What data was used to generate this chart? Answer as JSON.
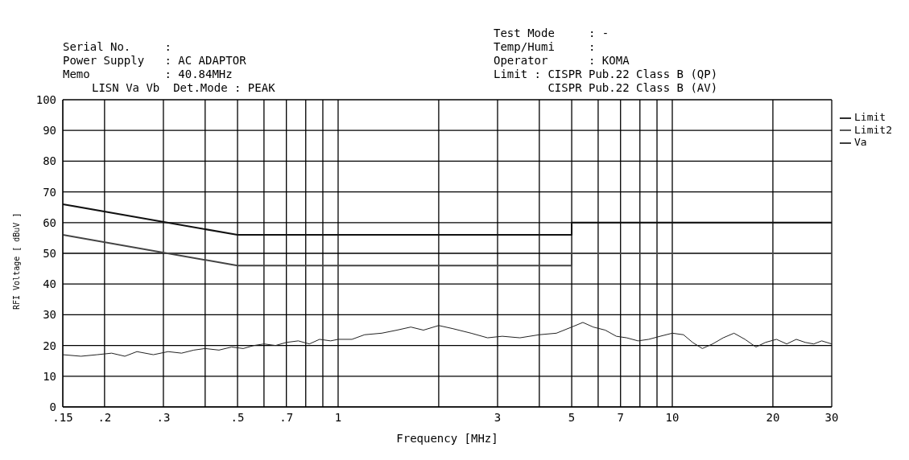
{
  "chart_data": {
    "type": "line",
    "xlabel": "Frequency [MHz]",
    "ylabel": "RFI Voltage [ dBuV ]",
    "log": "x",
    "xlim": [
      0.15,
      30
    ],
    "xticks": [
      {
        "value": 0.15,
        "label": ".15"
      },
      {
        "value": 0.2,
        "label": ".2"
      },
      {
        "value": 0.3,
        "label": ".3"
      },
      {
        "value": 0.4,
        "label": null
      },
      {
        "value": 0.5,
        "label": ".5"
      },
      {
        "value": 0.6,
        "label": null
      },
      {
        "value": 0.7,
        "label": ".7"
      },
      {
        "value": 0.8,
        "label": null
      },
      {
        "value": 0.9,
        "label": null
      },
      1,
      {
        "value": 2,
        "label": null
      },
      3,
      {
        "value": 4,
        "label": null
      },
      5,
      {
        "value": 6,
        "label": null
      },
      7,
      {
        "value": 8,
        "label": null
      },
      {
        "value": 9,
        "label": null
      },
      10,
      20,
      30
    ],
    "ylim": [
      0,
      100
    ],
    "yticks": [
      0,
      10,
      20,
      30,
      40,
      50,
      60,
      70,
      80,
      90,
      100
    ],
    "grid": true,
    "legend": "right",
    "line_style": "solid",
    "annotations": [
      "Serial No.     :",
      "Power Supply   : AC ADAPTOR",
      "Memo           : 40.84MHz",
      "LISN Va Vb  Det.Mode : PEAK",
      "Test Mode     : -",
      "Temp/Humi     :",
      "Operator      : KOMA",
      "Limit : CISPR Pub.22 Class B (QP)",
      "        CISPR Pub.22 Class B (AV)"
    ],
    "series": [
      {
        "name": "Limit",
        "color": "#111111",
        "x": [
          0.15,
          0.5,
          5,
          5,
          30
        ],
        "values": [
          66,
          56,
          56,
          60,
          60
        ]
      },
      {
        "name": "Limit2",
        "color": "#444444",
        "x": [
          0.15,
          0.5,
          5,
          5,
          30
        ],
        "values": [
          56,
          46,
          46,
          50,
          50
        ]
      },
      {
        "name": "Va",
        "color": "#222222",
        "x": [
          0.15,
          0.17,
          0.19,
          0.21,
          0.23,
          0.25,
          0.28,
          0.31,
          0.34,
          0.37,
          0.4,
          0.44,
          0.48,
          0.52,
          0.56,
          0.6,
          0.65,
          0.7,
          0.76,
          0.82,
          0.88,
          0.95,
          1.0,
          1.1,
          1.2,
          1.35,
          1.5,
          1.65,
          1.8,
          2.0,
          2.2,
          2.5,
          2.8,
          3.1,
          3.5,
          4.0,
          4.5,
          5.0,
          5.4,
          5.8,
          6.3,
          6.8,
          7.3,
          7.9,
          8.5,
          9.2,
          10,
          10.8,
          11.5,
          12.3,
          13.2,
          14.2,
          15.3,
          16.5,
          17.8,
          19,
          20.5,
          22,
          23.5,
          25,
          26.5,
          28,
          30
        ],
        "values": [
          17,
          16.5,
          17,
          17.5,
          16.5,
          18,
          17,
          18,
          17.5,
          18.5,
          19,
          18.5,
          19.5,
          19,
          20,
          20.5,
          20,
          21,
          21.5,
          20.5,
          22,
          21.5,
          22,
          22,
          23.5,
          24,
          25,
          26,
          25,
          26.5,
          25.5,
          24,
          22.5,
          23,
          22.5,
          23.5,
          24,
          26,
          27.5,
          26,
          25,
          23,
          22.5,
          21.5,
          22,
          23,
          24,
          23.5,
          21,
          19,
          20.5,
          22.5,
          24,
          22,
          19.5,
          21,
          22,
          20.5,
          22,
          21,
          20.5,
          21.5,
          20.5
        ]
      }
    ]
  }
}
